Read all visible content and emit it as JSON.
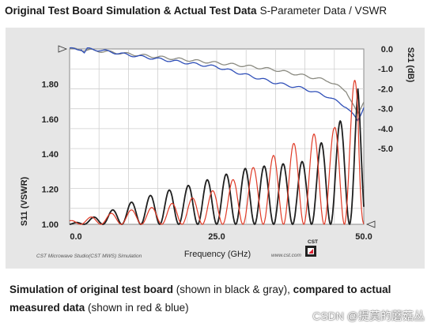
{
  "title": {
    "bold": "Original Test Board Simulation & Actual Test Data",
    "normal": "S-Parameter Data / VSWR"
  },
  "caption": {
    "part1": "Simulation of original test board",
    "part2": " (shown in black & gray), ",
    "part3": "compared to actual measured data",
    "part4": " (shown in red & blue)"
  },
  "footer_left": "CST Microwave Studio(CST MWS) Simulation",
  "footer_right": "www.cst.com",
  "logo_text": "CST",
  "watermark": "CSDN @提莫的蘑菇丛",
  "colors": {
    "sim_s21": "#8a8a80",
    "meas_s21": "#2f4fb8",
    "sim_s11": "#1f1f1f",
    "meas_s11": "#e03a26"
  },
  "chart_data": {
    "type": "line",
    "title": "Original Test Board Simulation & Actual Test Data",
    "subtitle": "S-Parameter Data / VSWR",
    "xlabel": "Frequency (GHz)",
    "xlim": [
      0,
      50
    ],
    "x_ticks": [
      "0.0",
      "25.0",
      "50.0"
    ],
    "left_axis": {
      "label": "S11 (VSWR)",
      "ylim": [
        1.0,
        2.0
      ],
      "ticks": [
        "1.80",
        "1.60",
        "1.40",
        "1.20",
        "1.00"
      ]
    },
    "right_axis": {
      "label": "S21 (dB)",
      "ylim": [
        -8.8,
        0.0
      ],
      "ticks": [
        "0.0",
        "-1.0",
        "-2.0",
        "-3.0",
        "-4.0",
        "-5.0"
      ]
    },
    "grid": true,
    "series": [
      {
        "axis": "right",
        "x": [
          0,
          5,
          10,
          15,
          20,
          25,
          30,
          35,
          40,
          44,
          47,
          49,
          50
        ],
        "values": [
          0.0,
          -0.1,
          -0.25,
          -0.4,
          -0.55,
          -0.7,
          -0.85,
          -1.05,
          -1.35,
          -1.6,
          -2.1,
          -3.3,
          -2.6
        ]
      },
      {
        "axis": "right",
        "x": [
          0,
          2,
          2.5,
          3,
          5,
          10,
          15,
          20,
          25,
          30,
          35,
          40,
          44,
          47,
          49,
          50
        ],
        "values": [
          0.0,
          0.0,
          -0.2,
          0.0,
          -0.05,
          -0.3,
          -0.5,
          -0.7,
          -0.9,
          -1.3,
          -1.7,
          -2.0,
          -2.4,
          -2.9,
          -3.6,
          -2.9
        ]
      },
      {
        "axis": "left",
        "x": [
          0,
          5,
          10,
          15,
          20,
          25,
          30,
          35,
          40,
          45,
          47,
          49,
          50
        ],
        "values": [
          1.0,
          1.05,
          1.12,
          1.18,
          1.22,
          1.27,
          1.32,
          1.34,
          1.36,
          1.55,
          1.63,
          1.8,
          1.2
        ]
      },
      {
        "axis": "left",
        "x": [
          0,
          5,
          10,
          15,
          20,
          25,
          30,
          35,
          40,
          45,
          47,
          49,
          50
        ],
        "values": [
          1.02,
          1.05,
          1.08,
          1.1,
          1.14,
          1.2,
          1.3,
          1.4,
          1.5,
          1.55,
          1.75,
          1.85,
          1.1
        ]
      }
    ]
  }
}
